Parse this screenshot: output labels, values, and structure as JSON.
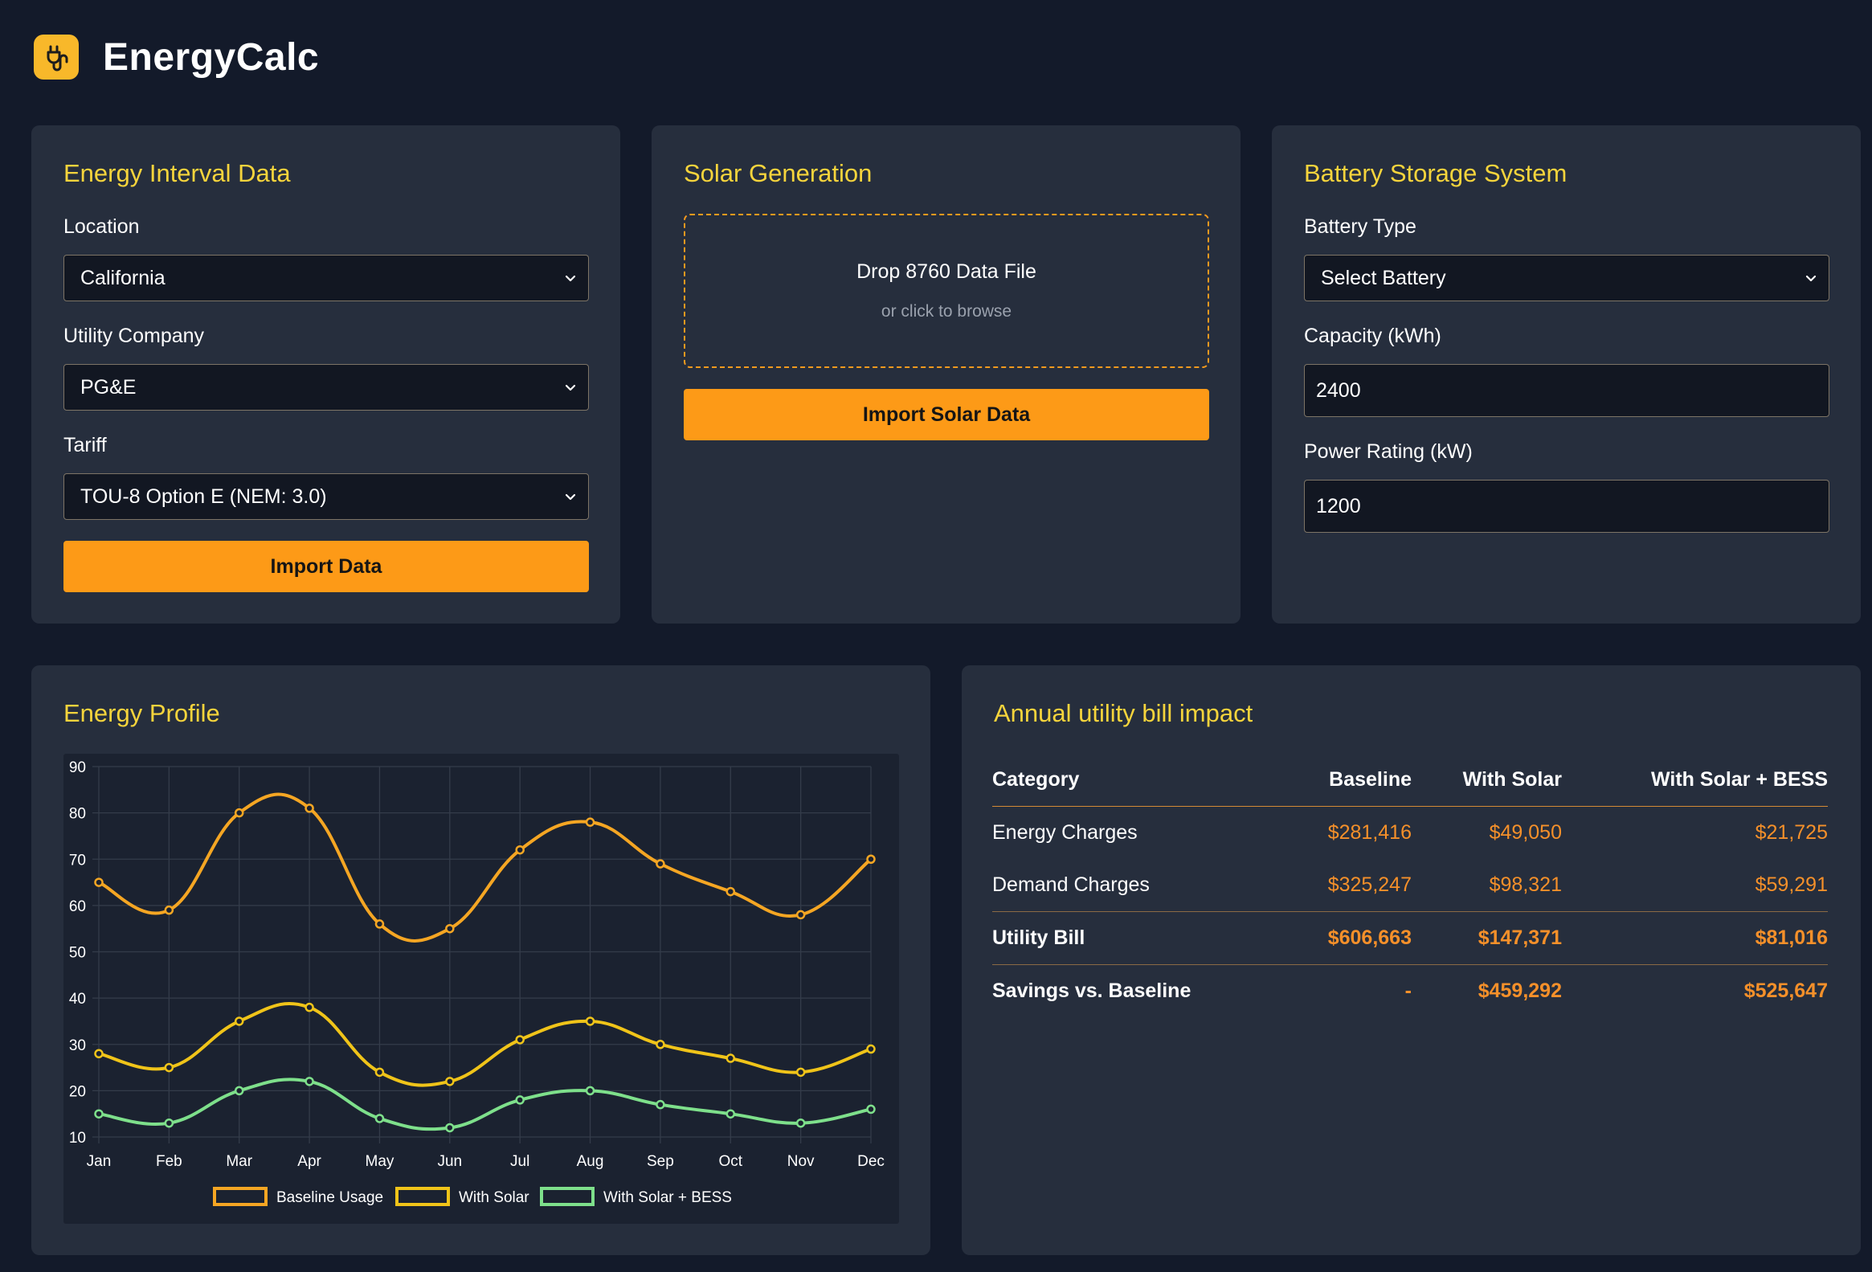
{
  "app": {
    "title": "EnergyCalc",
    "logo_icon": "plug-icon",
    "accent": "#fd9a17",
    "title_color": "#f6d43c"
  },
  "interval": {
    "title": "Energy Interval Data",
    "location_label": "Location",
    "location_value": "California",
    "utility_label": "Utility Company",
    "utility_value": "PG&E",
    "tariff_label": "Tariff",
    "tariff_value": "TOU-8 Option E (NEM: 3.0)",
    "import_button": "Import Data"
  },
  "solar": {
    "title": "Solar Generation",
    "drop_title": "Drop 8760 Data File",
    "drop_sub": "or click to browse",
    "import_button": "Import Solar Data"
  },
  "battery": {
    "title": "Battery Storage System",
    "type_label": "Battery Type",
    "type_value": "Select Battery",
    "capacity_label": "Capacity (kWh)",
    "capacity_value": "2400",
    "power_label": "Power Rating (kW)",
    "power_value": "1200"
  },
  "profile": {
    "title": "Energy Profile"
  },
  "chart_data": {
    "type": "line",
    "title": "",
    "xlabel": "",
    "ylabel": "",
    "categories": [
      "Jan",
      "Feb",
      "Mar",
      "Apr",
      "May",
      "Jun",
      "Jul",
      "Aug",
      "Sep",
      "Oct",
      "Nov",
      "Dec"
    ],
    "ylim": [
      10,
      90
    ],
    "yticks": [
      90,
      80,
      70,
      60,
      50,
      40,
      30,
      20,
      10
    ],
    "grid": true,
    "legend": "bottom",
    "series": [
      {
        "name": "Baseline Usage",
        "color": "#f5a623",
        "values": [
          65,
          59,
          80,
          81,
          56,
          55,
          72,
          78,
          69,
          63,
          58,
          70
        ]
      },
      {
        "name": "With Solar",
        "color": "#f0c419",
        "values": [
          28,
          25,
          35,
          38,
          24,
          22,
          31,
          35,
          30,
          27,
          24,
          29
        ]
      },
      {
        "name": "With Solar + BESS",
        "color": "#7ee08b",
        "values": [
          15,
          13,
          20,
          22,
          14,
          12,
          18,
          20,
          17,
          15,
          13,
          16
        ]
      }
    ]
  },
  "bill": {
    "title": "Annual utility bill impact",
    "columns": [
      "Category",
      "Baseline",
      "With Solar",
      "With Solar + BESS"
    ],
    "rows": [
      {
        "category": "Energy Charges",
        "baseline": "$281,416",
        "solar": "$49,050",
        "bess": "$21,725"
      },
      {
        "category": "Demand Charges",
        "baseline": "$325,247",
        "solar": "$98,321",
        "bess": "$59,291"
      },
      {
        "category": "Utility Bill",
        "baseline": "$606,663",
        "solar": "$147,371",
        "bess": "$81,016"
      },
      {
        "category": "Savings vs. Baseline",
        "baseline": "-",
        "solar": "$459,292",
        "bess": "$525,647"
      }
    ]
  }
}
